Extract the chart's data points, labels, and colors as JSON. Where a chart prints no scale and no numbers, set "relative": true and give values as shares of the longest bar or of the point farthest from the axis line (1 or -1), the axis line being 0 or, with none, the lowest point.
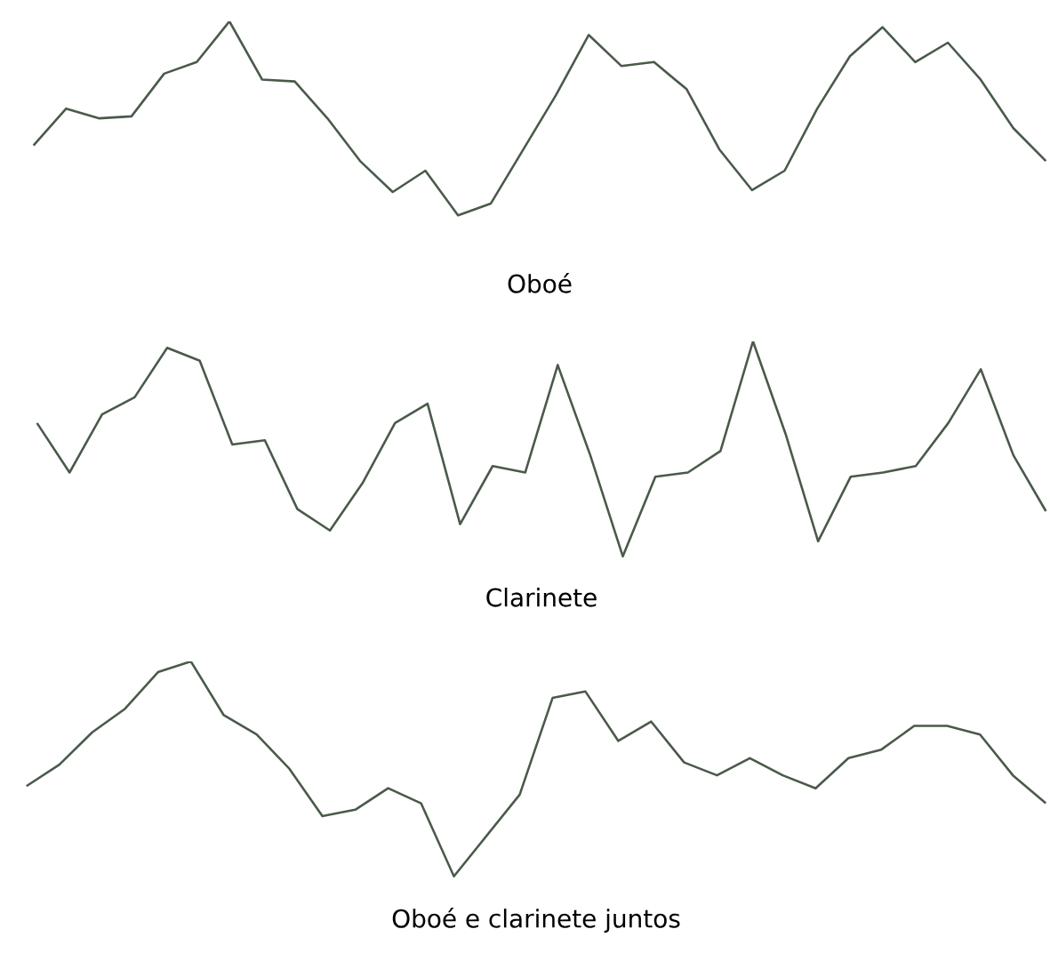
{
  "chart_data": [
    {
      "type": "line",
      "relative": true,
      "xlabel": "Oboé",
      "marker": "none",
      "line_style": "solid",
      "categories": [
        null,
        null,
        null,
        null,
        null,
        null,
        null,
        null,
        null,
        null,
        null,
        null,
        null,
        null,
        null,
        null,
        null,
        null,
        null,
        null,
        null,
        null,
        null,
        null,
        null,
        null,
        null,
        null,
        null,
        null,
        null,
        null
      ],
      "series": [
        {
          "color": "#4a5a4a",
          "values": [
            0.36,
            0.55,
            0.5,
            0.51,
            0.73,
            0.79,
            1.0,
            0.7,
            0.69,
            0.5,
            0.28,
            0.12,
            0.23,
            0.0,
            0.06,
            0.34,
            0.62,
            0.93,
            0.77,
            0.79,
            0.65,
            0.34,
            0.13,
            0.23,
            0.55,
            0.82,
            0.97,
            0.79,
            0.89,
            0.7,
            0.45,
            0.28
          ]
        }
      ]
    },
    {
      "type": "line",
      "relative": true,
      "xlabel": "Clarinete",
      "marker": "none",
      "line_style": "solid",
      "categories": [
        null,
        null,
        null,
        null,
        null,
        null,
        null,
        null,
        null,
        null,
        null,
        null,
        null,
        null,
        null,
        null,
        null,
        null,
        null,
        null,
        null,
        null,
        null,
        null,
        null,
        null,
        null,
        null,
        null,
        null,
        null,
        null
      ],
      "series": [
        {
          "color": "#4a5a4a",
          "values": [
            0.62,
            0.39,
            0.66,
            0.74,
            0.97,
            0.91,
            0.52,
            0.54,
            0.22,
            0.12,
            0.34,
            0.62,
            0.71,
            0.15,
            0.42,
            0.39,
            0.89,
            0.47,
            0.0,
            0.37,
            0.39,
            0.49,
            1.0,
            0.57,
            0.07,
            0.37,
            0.39,
            0.42,
            0.62,
            0.87,
            0.47,
            0.21
          ]
        }
      ]
    },
    {
      "type": "line",
      "relative": true,
      "xlabel": "Oboé e clarinete juntos",
      "marker": "none",
      "line_style": "solid",
      "categories": [
        null,
        null,
        null,
        null,
        null,
        null,
        null,
        null,
        null,
        null,
        null,
        null,
        null,
        null,
        null,
        null,
        null,
        null,
        null,
        null,
        null,
        null,
        null,
        null,
        null,
        null,
        null,
        null,
        null,
        null,
        null,
        null
      ],
      "series": [
        {
          "color": "#4a5a4a",
          "values": [
            0.42,
            0.52,
            0.67,
            0.78,
            0.95,
            1.0,
            0.75,
            0.66,
            0.5,
            0.28,
            0.31,
            0.41,
            0.34,
            0.0,
            0.19,
            0.38,
            0.83,
            0.86,
            0.63,
            0.72,
            0.53,
            0.47,
            0.55,
            0.47,
            0.41,
            0.55,
            0.59,
            0.7,
            0.7,
            0.66,
            0.47,
            0.34
          ]
        }
      ]
    }
  ]
}
